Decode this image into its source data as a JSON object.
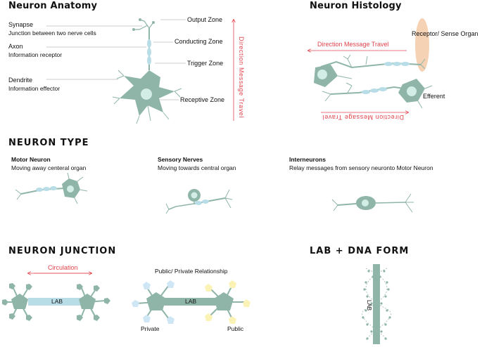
{
  "anatomy": {
    "title": "Neuron Anatomy",
    "synapse": "Synapse",
    "synapse_desc": "Junction between two nerve cells",
    "axon": "Axon",
    "axon_desc": "Information receptor",
    "dendrite": "Dendrite",
    "dendrite_desc": "Information effector",
    "output_zone": "Output Zone",
    "conducting_zone": "Conducting Zone",
    "trigger_zone": "Trigger Zone",
    "receptive_zone": "Receptive Zone",
    "direction": "Direction Message Travel"
  },
  "histology": {
    "title": "Neuron Histology",
    "receptor": "Receptor/ Sense Organ",
    "direction_top": "Direction Message Travel",
    "efferent": "Efferent",
    "direction_bottom": "Direction Message Travel"
  },
  "types": {
    "title": "NEURON TYPE",
    "motor": "Motor Neuron",
    "motor_desc": "Moving away centeral organ",
    "sensory": "Sensory Nerves",
    "sensory_desc": "Moving towards central organ",
    "inter": "Interneurons",
    "inter_desc": "Relay messages from sensory neuronto Motor Neuron"
  },
  "junction": {
    "title": "NEURON JUNCTION",
    "circulation": "Circulation",
    "lab_left": "LAB",
    "relationship": "Public/ Private Relationship",
    "lab_right": "LAB",
    "private": "Private",
    "public": "Public"
  },
  "lab_dna": {
    "title": "LAB + DNA FORM",
    "lab": "LAB"
  },
  "colors": {
    "cell": "#8fb5a9",
    "nucleus": "#d2ece6",
    "axon": "#b9dde7",
    "red": "#e0444c",
    "receptor": "#f6d2b4",
    "private": "#cfe7f5",
    "public": "#fbf3b5"
  }
}
